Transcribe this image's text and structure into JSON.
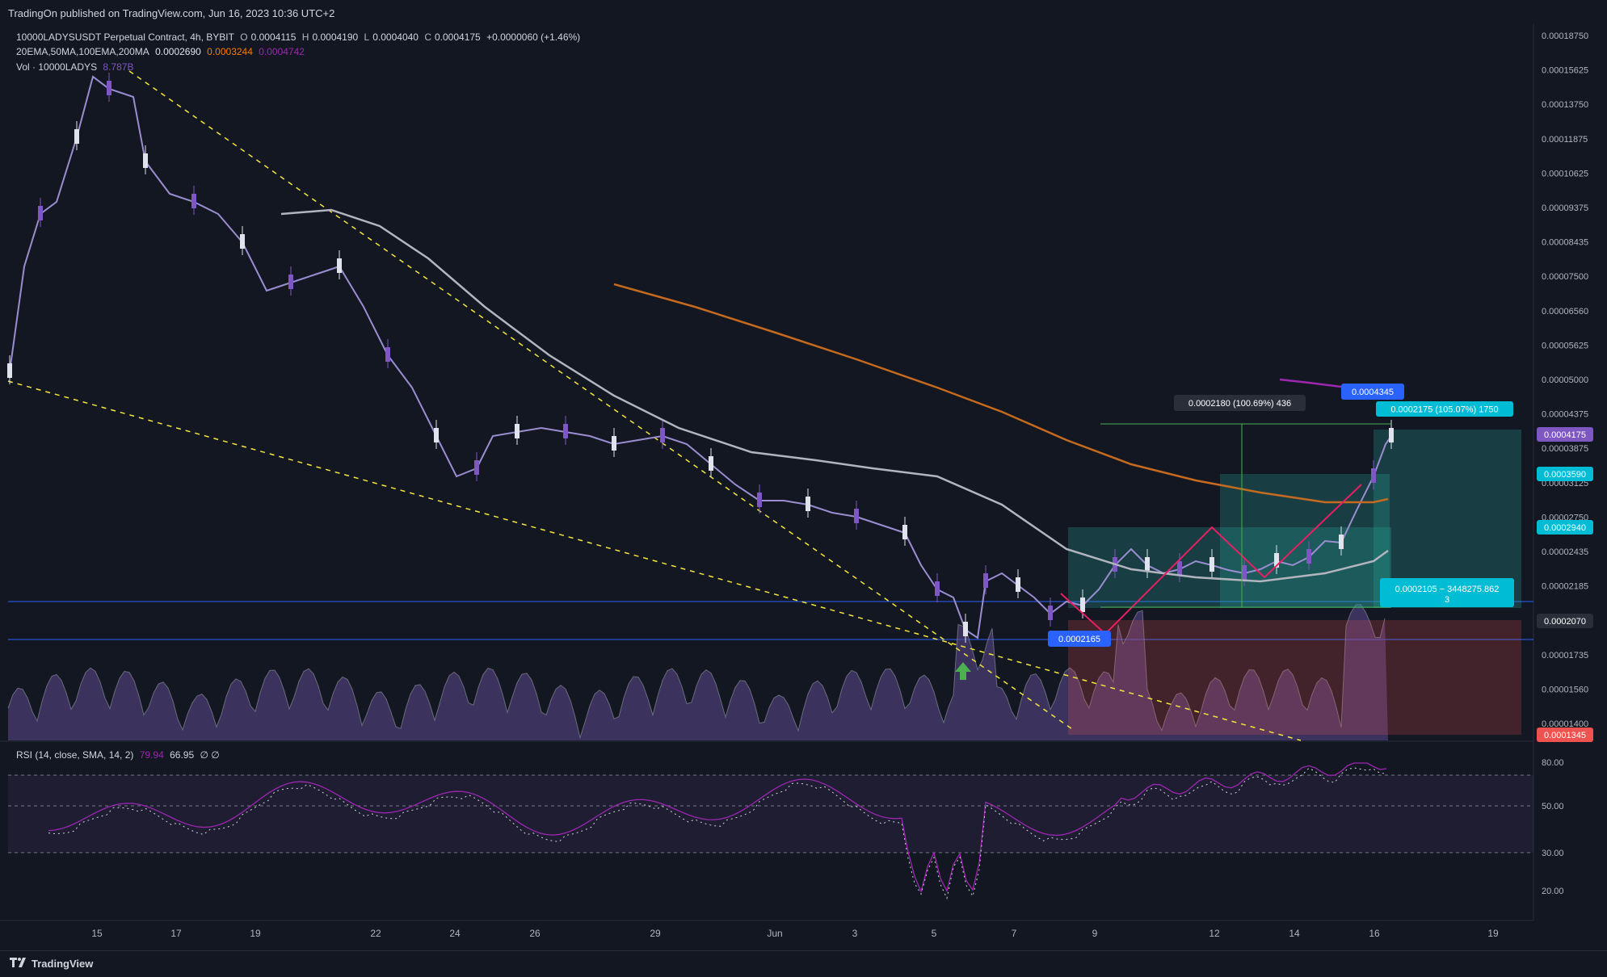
{
  "publisher": "TradingOn published on TradingView.com, Jun 16, 2023 10:36 UTC+2",
  "brand": "TradingView",
  "legend": {
    "symbol": "10000LADYSUSDT Perpetual Contract, 4h, BYBIT",
    "o_label": "O",
    "o": "0.0004115",
    "h_label": "H",
    "h": "0.0004190",
    "l_label": "L",
    "l": "0.0004040",
    "c_label": "C",
    "c": "0.0004175",
    "change": "+0.0000060 (+1.46%)",
    "ma_label": "20EMA,50MA,100EMA,200MA",
    "ma1": "0.0002690",
    "ma2": "0.0003244",
    "ma3": "0.0004742",
    "vol_label": "Vol · 10000LADYS",
    "vol_value": "8.787B"
  },
  "colors": {
    "background": "#131722",
    "up": "#e0e3eb",
    "down": "#7e57c2",
    "ema100": "#b2b5be",
    "ma200": "#c56a1e",
    "ema_purple": "#9c27b0",
    "trendline": "#f5e63b",
    "hline": "#2962ff",
    "zigzag": "#e91e63",
    "measure": "#4caf50",
    "target": "#26a69a",
    "stop": "#ef5350",
    "rsi": "#9c27b0"
  },
  "chart_data": {
    "type": "candlestick",
    "timeframe": "4h",
    "ylim": [
      0.00013,
      0.0001875
    ],
    "y_ticks": [
      "0.00018750",
      "0.00015625",
      "0.00013750",
      "0.00011875",
      "0.00010625",
      "0.00009375",
      "0.00008435",
      "0.00007500",
      "0.00006560",
      "0.00005625",
      "0.00005000",
      "0.00004375",
      "0.00003875",
      "0.00003125",
      "0.00002750",
      "0.00002435",
      "0.00002185",
      "0.00001935",
      "0.00001735",
      "0.00001560",
      "0.00001400"
    ],
    "x_ticks": [
      "15",
      "17",
      "19",
      "22",
      "24",
      "26",
      "29",
      "Jun",
      "3",
      "5",
      "7",
      "9",
      "12",
      "14",
      "16",
      "19"
    ],
    "last_close": "0.0004175",
    "overlays": {
      "ema100_label": "0.0003590",
      "ma200_label": "0.0002940",
      "ma_badge": "0.0002070",
      "low_badge": "0.0001345",
      "pointer_label": "0.0004345",
      "measure_label": "0.0002180 (100.69%) 436",
      "target_label": "0.0002175 (105.07%) 1750",
      "stop_label": "0.0002105 − 3448275.862",
      "stop_label_2": "3",
      "entry_label": "0.0002165"
    },
    "rsi": {
      "label": "RSI (14, close, SMA, 14, 2)",
      "value": "79.94",
      "sma": "66.95",
      "extra": "∅ ∅",
      "ticks": [
        "80.00",
        "50.00",
        "30.00",
        "20.00"
      ]
    }
  }
}
